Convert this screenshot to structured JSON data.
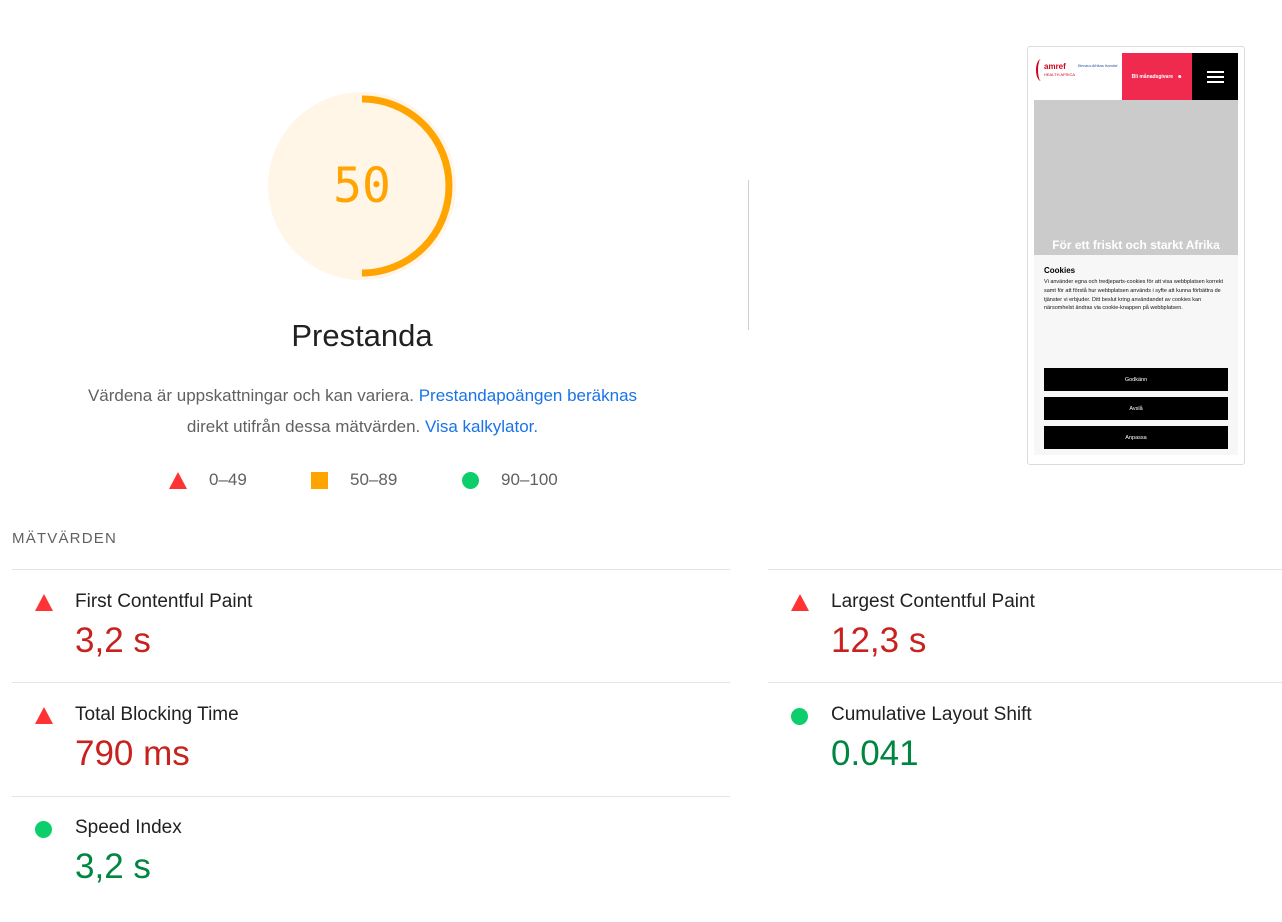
{
  "gauge": {
    "score": "50",
    "score_value": 50,
    "title": "Prestanda",
    "ring_color": "#ffa400",
    "track_color": "#fff6e8"
  },
  "description": {
    "text_before": "Värdena är uppskattningar och kan variera.",
    "link_calc": "Prestandapoängen beräknas",
    "text_mid": "direkt utifrån dessa mätvärden.",
    "link_calculator": "Visa kalkylator."
  },
  "legend": {
    "fail": {
      "label": "0–49",
      "icon": "triangle-icon",
      "color": "#ff3333"
    },
    "average": {
      "label": "50–89",
      "icon": "square-icon",
      "color": "#ffa400"
    },
    "pass": {
      "label": "90–100",
      "icon": "circle-icon",
      "color": "#0cce6b"
    }
  },
  "screenshot": {
    "logo": "amref",
    "logo_sub": "HEALTH AFRICA",
    "logo_tagline": "Bevara Afrikas framtid",
    "member_button": "Bli månadsgivare",
    "hero_text": "För ett friskt och starkt Afrika",
    "cookie_title": "Cookies",
    "cookie_text": "Vi använder egna och tredjeparts-cookies för att visa webbplatsen korrekt samt för att förstå hur webbplatsen används i syfte att kunna förbättra de tjänster vi erbjuder. Ditt beslut kring användandet av cookies kan närsomhelst ändras via cookie-knappen på webbplatsen.",
    "btn_accept": "Godkänn",
    "btn_reject": "Avslå",
    "btn_customize": "Anpassa"
  },
  "metrics": {
    "title": "MÄTVÄRDEN",
    "fcp": {
      "name": "First Contentful Paint",
      "value": "3,2 s",
      "rating": "fail"
    },
    "lcp": {
      "name": "Largest Contentful Paint",
      "value": "12,3 s",
      "rating": "fail"
    },
    "tbt": {
      "name": "Total Blocking Time",
      "value": "790 ms",
      "rating": "fail"
    },
    "cls": {
      "name": "Cumulative Layout Shift",
      "value": "0.041",
      "rating": "pass"
    },
    "si": {
      "name": "Speed Index",
      "value": "3,2 s",
      "rating": "pass"
    }
  }
}
